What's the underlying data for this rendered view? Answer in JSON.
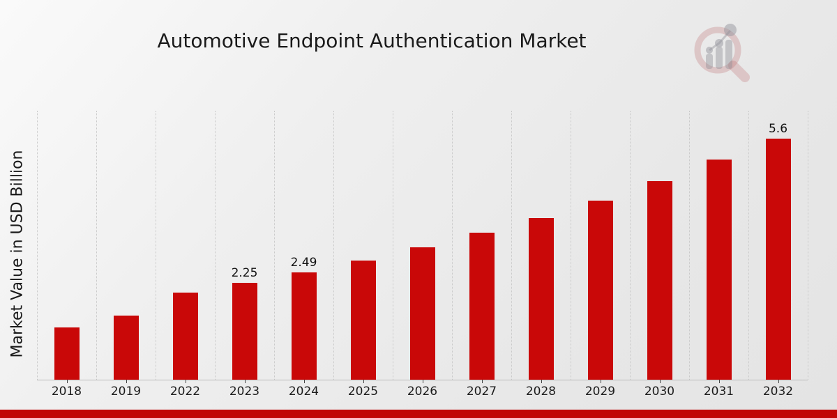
{
  "header": {
    "title": "Automotive Endpoint Authentication Market"
  },
  "logo": {
    "name": "market-research-magnifier-watermark",
    "ring_color": "rgba(186,98,102,0.26)",
    "bars_color": "rgba(142,142,150,0.42)"
  },
  "chart_data": {
    "type": "bar",
    "title": "Automotive Endpoint Authentication Market",
    "xlabel": "",
    "ylabel": "Market Value in USD Billion",
    "categories": [
      "2018",
      "2019",
      "2022",
      "2023",
      "2024",
      "2025",
      "2026",
      "2027",
      "2028",
      "2029",
      "2030",
      "2031",
      "2032"
    ],
    "values": [
      1.21,
      1.49,
      2.02,
      2.25,
      2.49,
      2.77,
      3.07,
      3.41,
      3.76,
      4.16,
      4.62,
      5.12,
      5.6
    ],
    "data_labels": {
      "2023": "2.25",
      "2024": "2.49",
      "2032": "5.6"
    },
    "ylim": [
      0,
      6.25
    ],
    "grid": "vertical-dotted",
    "legend": "none",
    "bar_color": "#C90808"
  },
  "footer": {
    "strip_color": "#C10505"
  }
}
